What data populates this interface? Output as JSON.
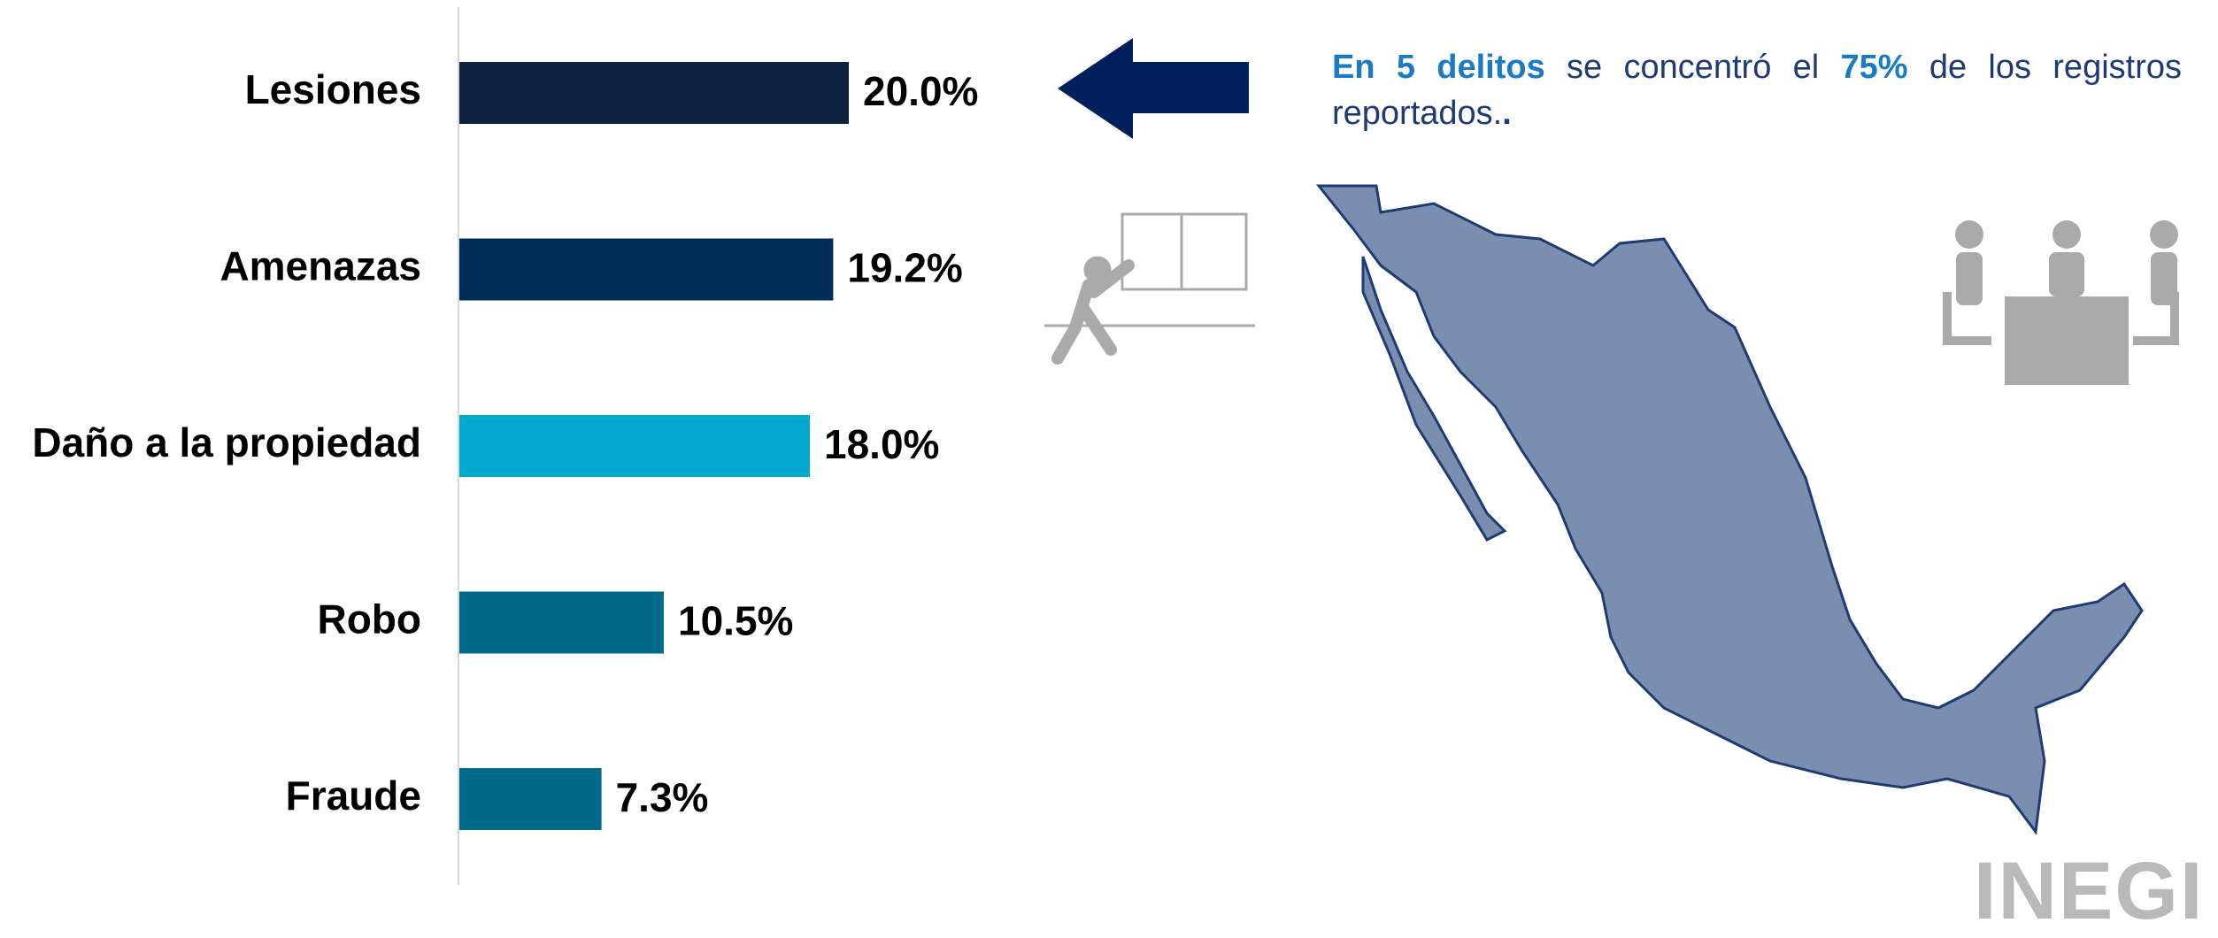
{
  "chart_data": {
    "type": "bar",
    "orientation": "horizontal",
    "categories": [
      "Lesiones",
      "Amenazas",
      "Daño a la propiedad",
      "Robo",
      "Fraude"
    ],
    "values": [
      20.0,
      19.2,
      18.0,
      10.5,
      7.3
    ],
    "value_labels": [
      "20.0%",
      "19.2%",
      "18.0%",
      "10.5%",
      "7.3%"
    ],
    "colors": [
      "#0f2340",
      "#002d57",
      "#00a8cc",
      "#006a8a",
      "#006a8a"
    ]
  },
  "note": {
    "parts": [
      "En 5 delitos",
      " se concentró el ",
      "75%",
      " de los registros reportados.",
      "."
    ]
  },
  "logo": "INEGI"
}
